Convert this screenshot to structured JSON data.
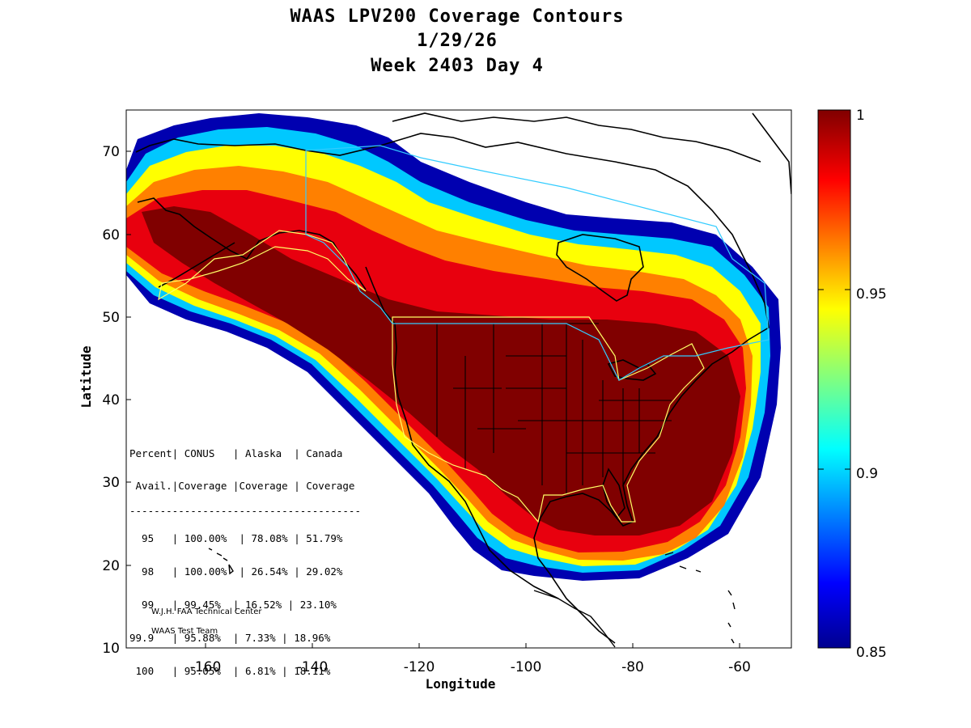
{
  "title": {
    "line1": "WAAS LPV200 Coverage Contours",
    "line2": "1/29/26",
    "line3": "Week 2403 Day 4"
  },
  "axes": {
    "xlabel": "Longitude",
    "ylabel": "Latitude",
    "xlim": [
      -174,
      -50
    ],
    "ylim": [
      10,
      75
    ],
    "xticks": [
      "-160",
      "-140",
      "-120",
      "-100",
      "-80",
      "-60"
    ],
    "yticks": [
      "10",
      "20",
      "30",
      "40",
      "50",
      "60",
      "70"
    ]
  },
  "colorbar": {
    "range": [
      0.85,
      1
    ],
    "ticks": [
      "0.85",
      "0.9",
      "0.95",
      "1"
    ],
    "colormap": "jet"
  },
  "stats_table": {
    "header1": "Percent| CONUS   | Alaska  | Canada",
    "header2": " Avail.|Coverage |Coverage | Coverage",
    "divider": "--------------------------------------",
    "rows": [
      "  95   | 100.00%  | 78.08% | 51.79%",
      "  98   | 100.00%  | 26.54% | 29.02%",
      "  99   | 99.45%  | 16.52% | 23.10%",
      "99.9   | 95.88%  | 7.33% | 18.96%",
      " 100   | 95.05%  | 6.81% | 18.11%"
    ]
  },
  "credit": {
    "line1": "W.J.H. FAA Technical Center",
    "line2": "WAAS Test Team"
  },
  "colors": {
    "max_coverage": "#800000",
    "min_coverage": "#00008f",
    "boundary_yellow": "#ffff66",
    "boundary_cyan": "#33ccff"
  }
}
